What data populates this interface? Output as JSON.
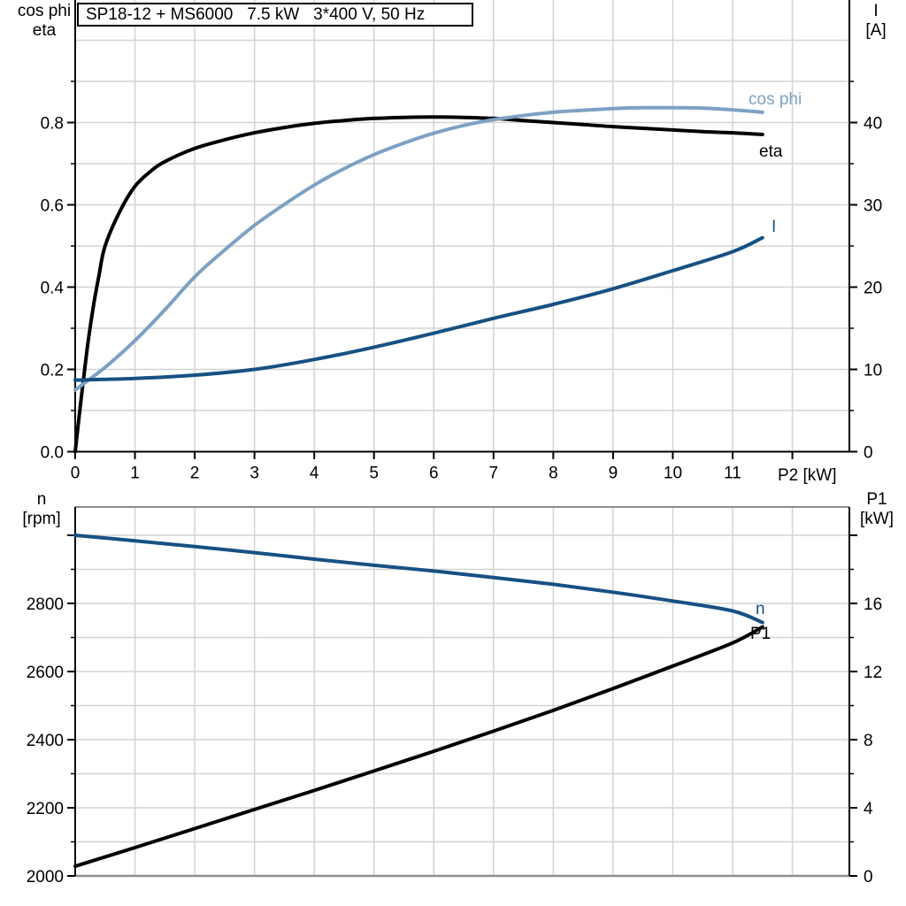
{
  "colors": {
    "curve_black": "#000000",
    "accent_light_blue": "#7DA1C4",
    "accent_dark_blue": "#175083",
    "grid": "#D3D3D3",
    "frame_gray": "#8E8E8E",
    "axis_black": "#000000"
  },
  "chart_data": [
    {
      "type": "line",
      "title": "SP18-12 + MS6000   7.5 kW   3*400 V, 50 Hz",
      "x_axis": {
        "label": "P2 [kW]",
        "min": 0,
        "max": 12.95,
        "tick_step": 1,
        "grid_count": 12,
        "tick_labels": [
          "0",
          "1",
          "2",
          "3",
          "4",
          "5",
          "6",
          "7",
          "8",
          "9",
          "10",
          "11"
        ]
      },
      "y_left": {
        "label_lines": [
          "cos phi",
          "eta"
        ],
        "min": 0,
        "major_step": 0.2,
        "minor_step": 0.1,
        "labeled_max": 0.8,
        "tick_max": 0.9,
        "decimals": 1,
        "tick_labels": [
          "0.0",
          "0.2",
          "0.4",
          "0.6",
          "0.8"
        ]
      },
      "y_right": {
        "label_lines": [
          "I",
          "[A]"
        ],
        "min": 0,
        "major_step": 10,
        "minor_step": 5,
        "labeled_max": 40,
        "tick_max": 45,
        "decimals": 0,
        "tick_labels": [
          "0",
          "10",
          "20",
          "30",
          "40"
        ]
      },
      "series": [
        {
          "name": "eta",
          "label": "eta",
          "color": "#000000",
          "axis": "left",
          "x": [
            0,
            0.1,
            0.2,
            0.3,
            0.4,
            0.5,
            0.75,
            1,
            1.25,
            1.5,
            2,
            2.5,
            3,
            3.5,
            4,
            4.5,
            5,
            5.5,
            6,
            6.5,
            7,
            7.5,
            8,
            8.5,
            9,
            9.5,
            10,
            10.5,
            11,
            11.5
          ],
          "y": [
            0,
            0.13,
            0.25,
            0.35,
            0.43,
            0.5,
            0.585,
            0.645,
            0.68,
            0.705,
            0.737,
            0.758,
            0.775,
            0.788,
            0.798,
            0.805,
            0.81,
            0.8125,
            0.8135,
            0.8125,
            0.81,
            0.805,
            0.8,
            0.795,
            0.79,
            0.786,
            0.782,
            0.778,
            0.775,
            0.771
          ]
        },
        {
          "name": "cos phi",
          "label": "cos phi",
          "color": "#7DA1C4",
          "axis": "left",
          "x": [
            0,
            0.5,
            1,
            1.5,
            2,
            2.5,
            3,
            3.5,
            4,
            4.5,
            5,
            5.5,
            6,
            6.5,
            7,
            7.5,
            8,
            8.5,
            9,
            9.5,
            10,
            10.5,
            11,
            11.5
          ],
          "y": [
            0.15,
            0.205,
            0.27,
            0.345,
            0.425,
            0.49,
            0.55,
            0.601,
            0.648,
            0.688,
            0.722,
            0.75,
            0.774,
            0.793,
            0.807,
            0.817,
            0.825,
            0.83,
            0.834,
            0.836,
            0.836,
            0.835,
            0.831,
            0.825
          ]
        },
        {
          "name": "I",
          "label": "I",
          "color": "#175083",
          "axis": "right",
          "x": [
            0,
            1,
            2,
            3,
            4,
            5,
            6,
            7,
            8,
            9,
            10,
            11,
            11.5
          ],
          "y": [
            8.7,
            8.9,
            9.3,
            10.0,
            11.2,
            12.7,
            14.4,
            16.2,
            17.9,
            19.8,
            22.0,
            24.3,
            26.0
          ]
        }
      ]
    },
    {
      "type": "line",
      "title": "",
      "x_axis": {
        "label": "",
        "min": 0,
        "max": 12.95,
        "tick_step": 1,
        "grid_count": 12,
        "tick_labels": []
      },
      "y_left": {
        "label_lines": [
          "n",
          "[rpm]"
        ],
        "min": 2000,
        "major_step": 200,
        "minor_step": 100,
        "labeled_max": 2800,
        "tick_max": 3000,
        "decimals": 0,
        "tick_labels": [
          "2000",
          "2200",
          "2400",
          "2600",
          "2800"
        ]
      },
      "y_right": {
        "label_lines": [
          "P1",
          "[kW]"
        ],
        "min": 0,
        "major_step": 4,
        "minor_step": 2,
        "labeled_max": 16,
        "tick_max": 20,
        "decimals": 0,
        "tick_labels": [
          "0",
          "4",
          "8",
          "12",
          "16"
        ]
      },
      "series": [
        {
          "name": "n",
          "label": "n",
          "color": "#175083",
          "axis": "left",
          "x": [
            0,
            1,
            2,
            3,
            4,
            5,
            6,
            7,
            8,
            9,
            10,
            11,
            11.5
          ],
          "y": [
            3000,
            2984,
            2967,
            2949,
            2930,
            2912,
            2895,
            2876,
            2856,
            2833,
            2807,
            2778,
            2744
          ]
        },
        {
          "name": "P1",
          "label": "P1",
          "color": "#000000",
          "axis": "right",
          "x": [
            0,
            1,
            2,
            3,
            4,
            5,
            6,
            7,
            8,
            9,
            10,
            11,
            11.5
          ],
          "y": [
            0.57,
            1.66,
            2.78,
            3.9,
            5.02,
            6.16,
            7.32,
            8.5,
            9.72,
            11.0,
            12.32,
            13.68,
            14.62
          ]
        }
      ]
    }
  ]
}
